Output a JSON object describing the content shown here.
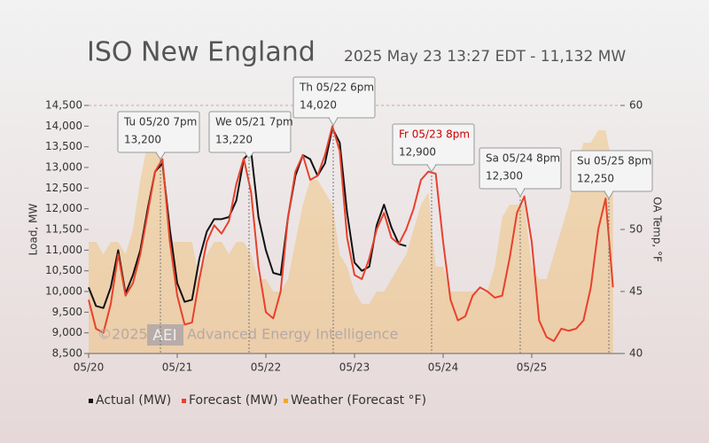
{
  "chart_data": {
    "type": "line",
    "title": "ISO New England",
    "subtitle": "2025 May 23 13:27 EDT - 11,132 MW",
    "y_label": "Load, MW",
    "y2_label": "OA Temp, °F",
    "watermark": {
      "year": "©2025",
      "logo": "AEI",
      "text": "Advanced Energy Intelligence"
    },
    "categories": [
      "05/20",
      null,
      null,
      null,
      null,
      null,
      null,
      null,
      null,
      null,
      null,
      null,
      "05/21",
      null,
      null,
      null,
      null,
      null,
      null,
      null,
      null,
      null,
      null,
      null,
      "05/22",
      null,
      null,
      null,
      null,
      null,
      null,
      null,
      null,
      null,
      null,
      null,
      "05/23",
      null,
      null,
      null,
      null,
      null,
      null,
      null,
      null,
      null,
      null,
      null,
      "05/24",
      null,
      null,
      null,
      null,
      null,
      null,
      null,
      null,
      null,
      null,
      null,
      "05/25",
      null,
      null,
      null,
      null,
      null,
      null,
      null,
      null,
      null,
      null,
      null
    ],
    "ylim": [
      8500,
      14500
    ],
    "yticks": [
      {
        "value": 8500,
        "label": "8,500"
      },
      {
        "value": 9000,
        "label": "9,000"
      },
      {
        "value": 9500,
        "label": "9,500"
      },
      {
        "value": 10000,
        "label": "10,000"
      },
      {
        "value": 10500,
        "label": "10,500"
      },
      {
        "value": 11000,
        "label": "11,000"
      },
      {
        "value": 11500,
        "label": "11,500"
      },
      {
        "value": 12000,
        "label": "12,000"
      },
      {
        "value": 12500,
        "label": "12,500"
      },
      {
        "value": 13000,
        "label": "13,000"
      },
      {
        "value": 13500,
        "label": "13,500"
      },
      {
        "value": 14000,
        "label": "14,000"
      },
      {
        "value": 14500,
        "label": "14,500"
      }
    ],
    "y2lim": [
      40,
      60
    ],
    "y2ticks": [
      40,
      45,
      50,
      60
    ],
    "series": [
      {
        "name": "Actual (MW)",
        "color": "#111111",
        "values": [
          10100,
          9650,
          9600,
          10100,
          11000,
          9950,
          10400,
          11000,
          12000,
          12900,
          13100,
          11500,
          10200,
          9750,
          9800,
          10800,
          11450,
          11750,
          11750,
          11800,
          12200,
          13200,
          13400,
          11800,
          11000,
          10450,
          10400,
          11800,
          12800,
          13300,
          13200,
          12800,
          13100,
          13950,
          13600,
          11900,
          10700,
          10500,
          10600,
          11600,
          12100,
          11550,
          11150,
          11100,
          null,
          null,
          null,
          null,
          null,
          null,
          null,
          null,
          null,
          null,
          null,
          null,
          null,
          null,
          null,
          null,
          null,
          null,
          null,
          null,
          null,
          null,
          null,
          null,
          null,
          null,
          null,
          null
        ]
      },
      {
        "name": "Forecast (MW)",
        "color": "#e8412c",
        "values": [
          9800,
          9100,
          9000,
          9700,
          10900,
          9900,
          10200,
          10900,
          11900,
          12900,
          13200,
          11200,
          9900,
          9200,
          9250,
          10300,
          11200,
          11600,
          11400,
          11700,
          12600,
          13220,
          12400,
          10600,
          9500,
          9350,
          10000,
          11800,
          12900,
          13300,
          12700,
          12800,
          13300,
          14000,
          13400,
          11300,
          10400,
          10300,
          10800,
          11500,
          11900,
          11300,
          11150,
          11500,
          12000,
          12700,
          12900,
          12850,
          11200,
          9800,
          9300,
          9400,
          9900,
          10100,
          10000,
          9850,
          9900,
          10800,
          11900,
          12300,
          11200,
          9300,
          8900,
          8800,
          9100,
          9050,
          9100,
          9300,
          10100,
          11500,
          12250,
          10100
        ]
      },
      {
        "name": "Weather (Forecast °F)",
        "color": "#f5a623",
        "axis": "y2",
        "style": "area",
        "values": [
          49,
          49,
          48,
          49,
          49,
          48,
          50,
          54,
          57,
          57,
          56,
          49,
          49,
          49,
          49,
          46,
          48,
          49,
          49,
          48,
          49,
          49,
          48,
          46,
          46,
          45,
          45,
          46,
          49,
          52,
          54,
          54,
          53,
          52,
          48,
          47,
          45,
          44,
          44,
          45,
          45,
          46,
          47,
          48,
          50,
          52,
          53,
          47,
          47,
          45,
          45,
          45,
          45,
          45,
          45,
          47,
          51,
          52,
          52,
          52,
          47,
          46,
          46,
          48,
          50,
          52,
          55,
          57,
          57,
          58,
          58,
          55
        ]
      }
    ],
    "annotations": [
      {
        "label": "Tu 05/20 7pm",
        "value": 13200,
        "value_label": "13,200",
        "label_color": "#333333"
      },
      {
        "label": "We 05/21 7pm",
        "value": 13220,
        "value_label": "13,220",
        "label_color": "#333333"
      },
      {
        "label": "Th 05/22 6pm",
        "value": 14020,
        "value_label": "14,020",
        "label_color": "#333333"
      },
      {
        "label": "Fr 05/23 8pm",
        "value": 12900,
        "value_label": "12,900",
        "label_color": "#cc0000"
      },
      {
        "label": "Sa 05/24 8pm",
        "value": 12300,
        "value_label": "12,300",
        "label_color": "#333333"
      },
      {
        "label": "Su 05/25 8pm",
        "value": 12250,
        "value_label": "12,250",
        "label_color": "#333333"
      }
    ]
  }
}
